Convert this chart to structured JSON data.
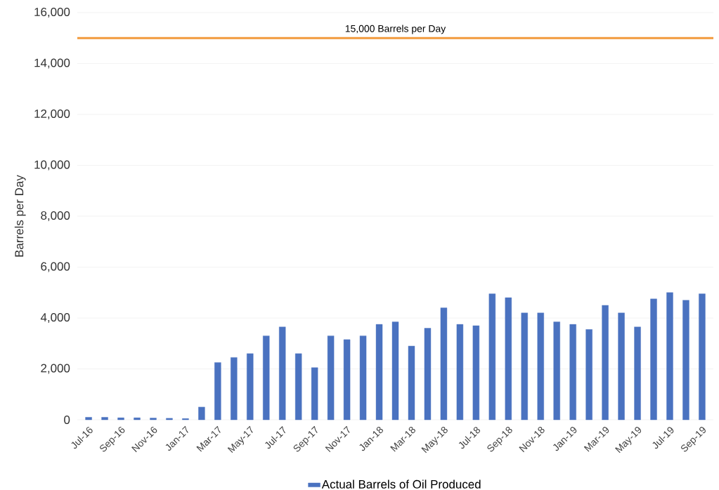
{
  "chart_data": {
    "type": "bar",
    "ylabel": "Barrels per Day",
    "categories": [
      "Jul-16",
      null,
      "Sep-16",
      null,
      "Nov-16",
      null,
      "Jan-17",
      null,
      "Mar-17",
      null,
      "May-17",
      null,
      "Jul-17",
      null,
      "Sep-17",
      null,
      "Nov-17",
      null,
      "Jan-18",
      null,
      "Mar-18",
      null,
      "May-18",
      null,
      "Jul-18",
      null,
      "Sep-18",
      null,
      "Nov-18",
      null,
      "Jan-19",
      null,
      "Mar-19",
      null,
      "May-19",
      null,
      "Jul-19",
      null,
      "Sep-19"
    ],
    "series": [
      {
        "name": "Actual Barrels of Oil Produced",
        "color": "#4a72c0",
        "values": [
          100,
          100,
          80,
          80,
          70,
          60,
          50,
          500,
          2250,
          2450,
          2600,
          3300,
          3650,
          2600,
          2050,
          3300,
          3150,
          3300,
          3750,
          3850,
          2900,
          3600,
          4400,
          3750,
          3700,
          4950,
          4800,
          4200,
          4200,
          3850,
          3750,
          3550,
          4500,
          4200,
          3650,
          4750,
          5000,
          4700,
          4950
        ]
      }
    ],
    "ylim": [
      0,
      16000
    ],
    "yticks": [
      {
        "value": 0,
        "label": "0"
      },
      {
        "value": 2000,
        "label": "2,000"
      },
      {
        "value": 4000,
        "label": "4,000"
      },
      {
        "value": 6000,
        "label": "6,000"
      },
      {
        "value": 8000,
        "label": "8,000"
      },
      {
        "value": 10000,
        "label": "10,000"
      },
      {
        "value": 12000,
        "label": "12,000"
      },
      {
        "value": 14000,
        "label": "14,000"
      },
      {
        "value": 16000,
        "label": "16,000"
      }
    ],
    "ref_lines": [
      {
        "axis": "y",
        "value": 15000,
        "label": "15,000 Barrels per Day",
        "color": "#f29a3c"
      }
    ],
    "grid": "y",
    "legend": "bottom"
  }
}
